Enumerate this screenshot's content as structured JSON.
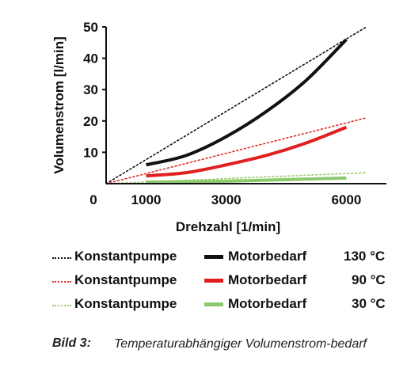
{
  "chart_data": {
    "type": "line",
    "xlabel": "Drehzahl  [1/min]",
    "ylabel": "Volumenstrom [l/min]",
    "xlim": [
      0,
      7000
    ],
    "ylim": [
      0,
      50
    ],
    "xticks": [
      {
        "value": 0,
        "label": "0"
      },
      {
        "value": 1000,
        "label": "1000"
      },
      {
        "value": 3000,
        "label": "3000"
      },
      {
        "value": 6000,
        "label": "6000"
      }
    ],
    "yticks": [
      {
        "value": 10,
        "label": "10"
      },
      {
        "value": 20,
        "label": "20"
      },
      {
        "value": 30,
        "label": "30"
      },
      {
        "value": 40,
        "label": "40"
      },
      {
        "value": 50,
        "label": "50"
      }
    ],
    "series": [
      {
        "name": "Konstantpumpe",
        "temp": "130 °C",
        "color": "#111111",
        "style": "dotted",
        "x": [
          0,
          6500
        ],
        "y": [
          0,
          50
        ]
      },
      {
        "name": "Motorbedarf",
        "temp": "130 °C",
        "color": "#111111",
        "style": "solid",
        "x": [
          1000,
          2000,
          3000,
          4000,
          5000,
          6000
        ],
        "y": [
          6,
          9,
          15,
          23,
          33,
          46
        ]
      },
      {
        "name": "Konstantpumpe",
        "temp": "90 °C",
        "color": "#e03030",
        "style": "dotted",
        "x": [
          0,
          6500
        ],
        "y": [
          0,
          21
        ]
      },
      {
        "name": "Motorbedarf",
        "temp": "90 °C",
        "color": "#e02020",
        "style": "solid",
        "x": [
          1000,
          2000,
          3000,
          4000,
          5000,
          6000
        ],
        "y": [
          2.5,
          3.5,
          6,
          9,
          13,
          18
        ]
      },
      {
        "name": "Konstantpumpe",
        "temp": "30 °C",
        "color": "#9ccc6a",
        "style": "dotted",
        "x": [
          0,
          6500
        ],
        "y": [
          0,
          3.5
        ]
      },
      {
        "name": "Motorbedarf",
        "temp": "30 °C",
        "color": "#8cc86c",
        "style": "solid",
        "x": [
          1000,
          3000,
          6000
        ],
        "y": [
          0.5,
          0.8,
          1.8
        ]
      }
    ]
  },
  "legend": [
    {
      "dotted_label": "Konstantpumpe",
      "solid_label": "Motorbedarf",
      "temp": "130 °C",
      "dot_color": "#111111",
      "solid_color": "#111111"
    },
    {
      "dotted_label": "Konstantpumpe",
      "solid_label": "Motorbedarf",
      "temp": "90 °C",
      "dot_color": "#e03030",
      "solid_color": "#e02020"
    },
    {
      "dotted_label": "Konstantpumpe",
      "solid_label": "Motorbedarf",
      "temp": "30 °C",
      "dot_color": "#9ccc6a",
      "solid_color": "#8cc86c"
    }
  ],
  "caption": {
    "label": "Bild 3:",
    "text": "Temperaturabhängiger Volumenstrom-bedarf"
  }
}
